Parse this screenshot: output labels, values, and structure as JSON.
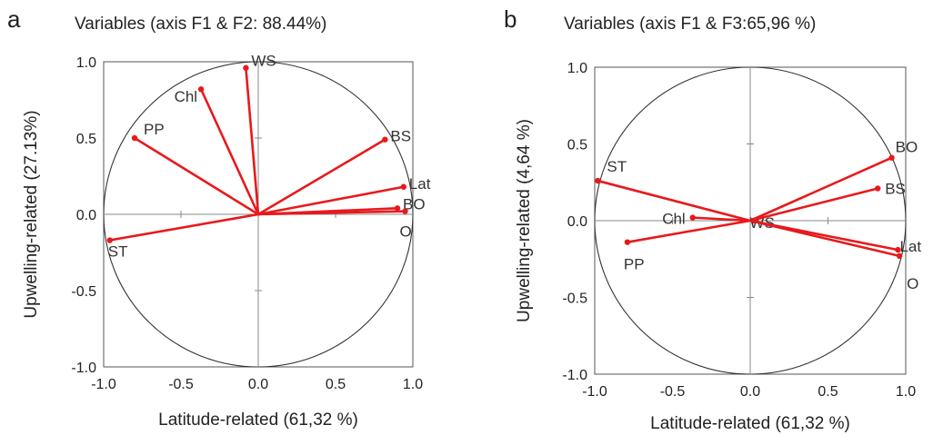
{
  "chart_data": [
    {
      "panel": "a",
      "type": "scatter",
      "title": "Variables (axis F1 & F2: 88.44%)",
      "xlabel": "Latitude-related (61,32 %)",
      "ylabel": "Upwelling-related (27.13%)",
      "xlim": [
        -1.0,
        1.0
      ],
      "ylim": [
        -1.0,
        1.0
      ],
      "xticks": [
        "-1.0",
        "-0.5",
        "0.0",
        "0.5",
        "1.0"
      ],
      "yticks": [
        "-1.0",
        "-0.5",
        "0.0",
        "0.5",
        "1.0"
      ],
      "grid": false,
      "line_color": "#e8191c",
      "points": [
        {
          "label": "WS",
          "x": -0.08,
          "y": 0.96
        },
        {
          "label": "Chl",
          "x": -0.37,
          "y": 0.82
        },
        {
          "label": "PP",
          "x": -0.8,
          "y": 0.5
        },
        {
          "label": "BS",
          "x": 0.82,
          "y": 0.49
        },
        {
          "label": "Lat",
          "x": 0.94,
          "y": 0.18
        },
        {
          "label": "BO",
          "x": 0.9,
          "y": 0.04
        },
        {
          "label": "O",
          "x": 0.95,
          "y": 0.02
        },
        {
          "label": "ST",
          "x": -0.96,
          "y": -0.17
        }
      ]
    },
    {
      "panel": "b",
      "type": "scatter",
      "title": "Variables (axis F1 & F3:65,96 %)",
      "xlabel": "Latitude-related (61,32 %)",
      "ylabel": "Upwelling-related (4,64 %)",
      "xlim": [
        -1.0,
        1.0
      ],
      "ylim": [
        -1.0,
        1.0
      ],
      "xticks": [
        "-1.0",
        "-0.5",
        "0.0",
        "0.5",
        "1.0"
      ],
      "yticks": [
        "-1.0",
        "-0.5",
        "0.0",
        "0.5",
        "1.0"
      ],
      "grid": false,
      "line_color": "#e8191c",
      "points": [
        {
          "label": "ST",
          "x": -0.98,
          "y": 0.26
        },
        {
          "label": "Chl",
          "x": -0.37,
          "y": 0.02
        },
        {
          "label": "PP",
          "x": -0.79,
          "y": -0.14
        },
        {
          "label": "WS",
          "x": 0.02,
          "y": 0.0
        },
        {
          "label": "BO",
          "x": 0.91,
          "y": 0.41
        },
        {
          "label": "BS",
          "x": 0.82,
          "y": 0.21
        },
        {
          "label": "Lat",
          "x": 0.95,
          "y": -0.19
        },
        {
          "label": "O",
          "x": 0.96,
          "y": -0.23
        }
      ]
    }
  ],
  "panels": [
    {
      "letter": "a"
    },
    {
      "letter": "b"
    }
  ]
}
